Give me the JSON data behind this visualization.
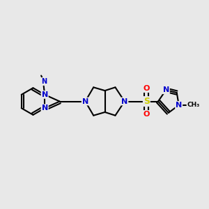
{
  "bg_color": "#e8e8e8",
  "atom_colors": {
    "C": "#000000",
    "N": "#0000cc",
    "S": "#cccc00",
    "O": "#ff0000"
  },
  "bond_color": "#000000",
  "bond_width": 1.5,
  "figsize": [
    3.0,
    3.0
  ],
  "dpi": 100
}
